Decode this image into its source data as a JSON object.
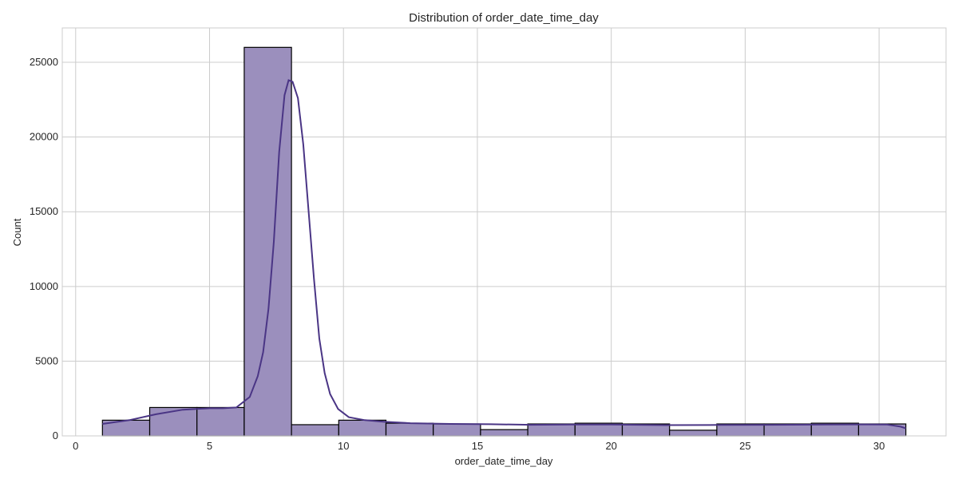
{
  "chart_data": {
    "type": "bar",
    "title": "Distribution of order_date_time_day",
    "xlabel": "order_date_time_day",
    "ylabel": "Count",
    "xlim": [
      -0.5,
      32.5
    ],
    "ylim": [
      0,
      27300
    ],
    "xticks": [
      0,
      5,
      10,
      15,
      20,
      25,
      30
    ],
    "yticks": [
      0,
      5000,
      10000,
      15000,
      20000,
      25000
    ],
    "grid": true,
    "bins": [
      {
        "x0": 1.0,
        "x1": 2.765,
        "count": 1050
      },
      {
        "x0": 2.765,
        "x1": 4.529,
        "count": 1900
      },
      {
        "x0": 4.529,
        "x1": 6.294,
        "count": 1900
      },
      {
        "x0": 6.294,
        "x1": 8.059,
        "count": 26000
      },
      {
        "x0": 8.059,
        "x1": 9.824,
        "count": 750
      },
      {
        "x0": 9.824,
        "x1": 11.588,
        "count": 1050
      },
      {
        "x0": 11.588,
        "x1": 13.353,
        "count": 850
      },
      {
        "x0": 13.353,
        "x1": 15.118,
        "count": 800
      },
      {
        "x0": 15.118,
        "x1": 16.882,
        "count": 420
      },
      {
        "x0": 16.882,
        "x1": 18.647,
        "count": 800
      },
      {
        "x0": 18.647,
        "x1": 20.412,
        "count": 850
      },
      {
        "x0": 20.412,
        "x1": 22.176,
        "count": 800
      },
      {
        "x0": 22.176,
        "x1": 23.941,
        "count": 380
      },
      {
        "x0": 23.941,
        "x1": 25.706,
        "count": 800
      },
      {
        "x0": 25.706,
        "x1": 27.471,
        "count": 800
      },
      {
        "x0": 27.471,
        "x1": 29.235,
        "count": 850
      },
      {
        "x0": 29.235,
        "x1": 31.0,
        "count": 800
      }
    ],
    "kde": [
      [
        1.0,
        800
      ],
      [
        2.0,
        1050
      ],
      [
        3.0,
        1450
      ],
      [
        4.0,
        1750
      ],
      [
        5.0,
        1850
      ],
      [
        5.5,
        1850
      ],
      [
        6.0,
        1900
      ],
      [
        6.5,
        2600
      ],
      [
        6.8,
        4000
      ],
      [
        7.0,
        5600
      ],
      [
        7.2,
        8500
      ],
      [
        7.4,
        13000
      ],
      [
        7.6,
        19000
      ],
      [
        7.8,
        22800
      ],
      [
        7.95,
        23800
      ],
      [
        8.1,
        23700
      ],
      [
        8.3,
        22600
      ],
      [
        8.5,
        19500
      ],
      [
        8.7,
        15000
      ],
      [
        8.9,
        10500
      ],
      [
        9.1,
        6500
      ],
      [
        9.3,
        4200
      ],
      [
        9.5,
        2800
      ],
      [
        9.8,
        1800
      ],
      [
        10.2,
        1250
      ],
      [
        10.8,
        1050
      ],
      [
        11.5,
        950
      ],
      [
        12.5,
        850
      ],
      [
        14.0,
        800
      ],
      [
        15.5,
        780
      ],
      [
        17.0,
        740
      ],
      [
        18.5,
        760
      ],
      [
        20.0,
        760
      ],
      [
        22.0,
        720
      ],
      [
        24.0,
        730
      ],
      [
        26.0,
        740
      ],
      [
        28.0,
        760
      ],
      [
        29.5,
        770
      ],
      [
        30.3,
        760
      ],
      [
        30.8,
        620
      ],
      [
        31.0,
        500
      ]
    ],
    "colors": {
      "bar_fill": "#9b8fbd",
      "bar_edge": "#000000",
      "kde_line": "#4a3585",
      "grid": "#cccccc",
      "axes_edge": "#cccccc"
    }
  }
}
